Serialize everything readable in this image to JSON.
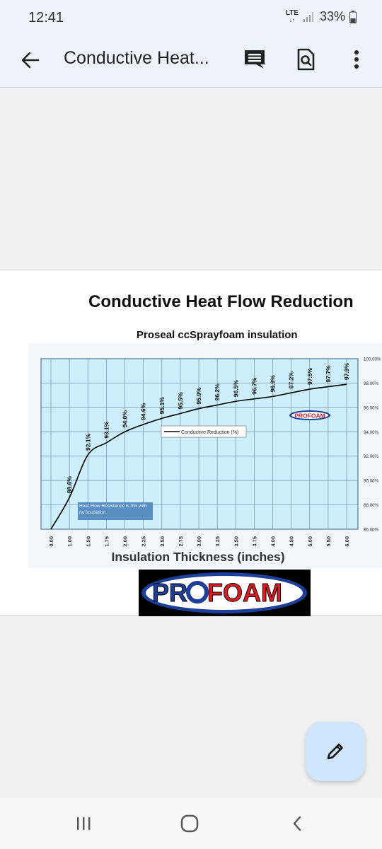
{
  "status_bar": {
    "time": "12:41",
    "network": "LTE",
    "battery": "33%"
  },
  "app_bar": {
    "title": "Conductive Heat..."
  },
  "document": {
    "title": "Conductive Heat Flow Reduction",
    "subtitle": "Proseal ccSprayfoam insulation",
    "logo_text": {
      "pre": "PR",
      "post": "FOAM"
    }
  },
  "chart_data": {
    "type": "line",
    "xlabel": "Insulation Thickness (inches)",
    "x_tick_labels": [
      "0.00",
      "1.00",
      "1.50",
      "1.75",
      "2.00",
      "2.25",
      "2.50",
      "2.75",
      "3.00",
      "3.25",
      "3.50",
      "3.75",
      "4.00",
      "4.50",
      "5.00",
      "5.50",
      "6.00"
    ],
    "y_tick_labels": [
      "100.00%",
      "98.00%",
      "96.00%",
      "94.00%",
      "92.00%",
      "90.00%",
      "88.00%",
      "86.00%"
    ],
    "ylim": [
      86,
      100
    ],
    "grid": true,
    "legend_position": "center",
    "series": [
      {
        "name": "Conductive Reduction (%)",
        "color": "#000000",
        "values": [
          86.0,
          88.6,
          92.1,
          93.1,
          94.0,
          94.6,
          95.1,
          95.5,
          95.9,
          96.2,
          96.5,
          96.7,
          96.9,
          97.2,
          97.5,
          97.7,
          97.9
        ]
      }
    ],
    "point_labels": [
      "",
      "88.6%",
      "92.1%",
      "93.1%",
      "94.0%",
      "94.6%",
      "95.1%",
      "95.5%",
      "95.9%",
      "96.2%",
      "96.5%",
      "96.7%",
      "96.9%",
      "97.2%",
      "97.5%",
      "97.7%",
      "97.9%"
    ],
    "annotation": "Heat Flow Resistance is 0% with no insulation.",
    "inset_logo": "PROFOAM"
  },
  "colors": {
    "chart_bg": "#cdeffb",
    "grid": "#6f8fa8",
    "brand_red": "#e21b23",
    "brand_blue": "#1d3f9a",
    "fab": "#cfe6fb"
  },
  "icons": [
    "back-arrow-icon",
    "comment-icon",
    "find-in-page-icon",
    "more-vert-icon",
    "edit-pencil-icon"
  ]
}
